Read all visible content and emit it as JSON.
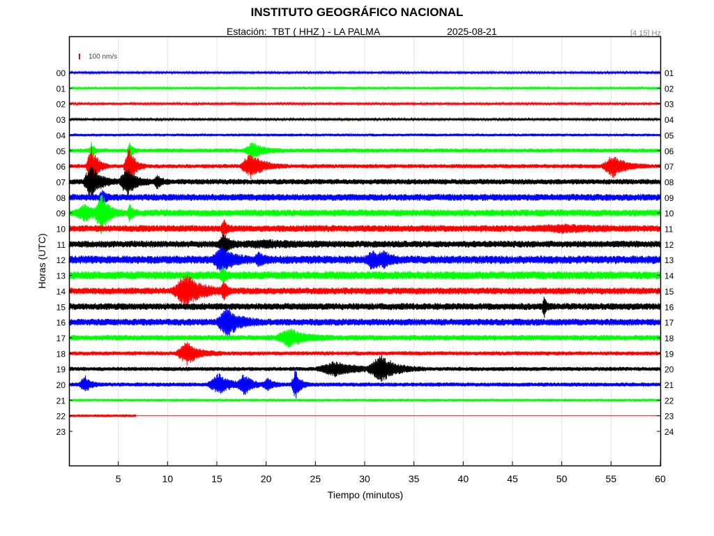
{
  "header": {
    "title": "INSTITUTO GEOGRÁFICO NACIONAL",
    "station": "Estación:  TBT ( HHZ ) - LA PALMA",
    "date": "2025-08-21",
    "band": "[4 15] Hz",
    "scale": "100 nm/s"
  },
  "chart_data": {
    "type": "line",
    "title": "INSTITUTO GEOGRÁFICO NACIONAL",
    "xlabel": "Tiempo (minutos)",
    "ylabel": "Horas (UTC)",
    "xlim": [
      0,
      60
    ],
    "x_ticks": [
      5,
      10,
      15,
      20,
      25,
      30,
      35,
      40,
      45,
      50,
      55,
      60
    ],
    "left_tick_labels": [
      "00",
      "01",
      "02",
      "03",
      "04",
      "05",
      "06",
      "07",
      "08",
      "09",
      "10",
      "11",
      "12",
      "13",
      "14",
      "15",
      "16",
      "17",
      "18",
      "19",
      "20",
      "21",
      "22",
      "23"
    ],
    "right_tick_labels": [
      "01",
      "02",
      "03",
      "04",
      "05",
      "06",
      "07",
      "08",
      "09",
      "10",
      "11",
      "12",
      "13",
      "14",
      "15",
      "16",
      "17",
      "18",
      "19",
      "20",
      "21",
      "22",
      "23",
      "24"
    ],
    "grid": true,
    "colors": [
      "#0000ff",
      "#00ff00",
      "#ff0000",
      "#000000"
    ],
    "series": [
      {
        "hour": "00",
        "color": "#0000ff",
        "noise": 1.5,
        "events": []
      },
      {
        "hour": "01",
        "color": "#00ff00",
        "noise": 1.5,
        "events": []
      },
      {
        "hour": "02",
        "color": "#ff0000",
        "noise": 1.5,
        "events": []
      },
      {
        "hour": "03",
        "color": "#000000",
        "noise": 1.5,
        "events": []
      },
      {
        "hour": "04",
        "color": "#0000ff",
        "noise": 2.0,
        "events": []
      },
      {
        "hour": "05",
        "color": "#00ff00",
        "noise": 3.0,
        "events": [
          [
            2.3,
            0.3,
            10
          ],
          [
            6.2,
            0.3,
            12
          ],
          [
            18.7,
            1.0,
            12
          ]
        ]
      },
      {
        "hour": "06",
        "color": "#ff0000",
        "noise": 3.0,
        "events": [
          [
            2.3,
            0.6,
            30
          ],
          [
            6.1,
            0.6,
            28
          ],
          [
            18.5,
            1.2,
            18
          ],
          [
            55.2,
            1.2,
            16
          ]
        ]
      },
      {
        "hour": "07",
        "color": "#000000",
        "noise": 4.0,
        "events": [
          [
            2.3,
            0.9,
            25
          ],
          [
            5.9,
            0.9,
            20
          ],
          [
            9.0,
            0.4,
            10
          ]
        ]
      },
      {
        "hour": "08",
        "color": "#0000ff",
        "noise": 5.0,
        "events": [
          [
            3.4,
            0.4,
            8
          ]
        ]
      },
      {
        "hour": "09",
        "color": "#00ff00",
        "noise": 5.0,
        "events": [
          [
            1.6,
            1.0,
            10
          ],
          [
            3.3,
            0.7,
            28
          ],
          [
            6.2,
            0.3,
            10
          ]
        ]
      },
      {
        "hour": "10",
        "color": "#ff0000",
        "noise": 5.0,
        "events": [
          [
            15.7,
            0.3,
            14
          ],
          [
            50.0,
            3.0,
            3
          ]
        ]
      },
      {
        "hour": "11",
        "color": "#000000",
        "noise": 5.0,
        "events": [
          [
            15.7,
            0.6,
            14
          ],
          [
            20.0,
            3.0,
            3
          ]
        ]
      },
      {
        "hour": "12",
        "color": "#0000ff",
        "noise": 6.0,
        "events": [
          [
            15.5,
            1.0,
            18
          ],
          [
            19.3,
            0.5,
            8
          ],
          [
            30.8,
            0.8,
            12
          ],
          [
            32.0,
            0.6,
            8
          ]
        ]
      },
      {
        "hour": "13",
        "color": "#00ff00",
        "noise": 6.0,
        "events": [
          [
            15.6,
            0.3,
            10
          ]
        ]
      },
      {
        "hour": "14",
        "color": "#ff0000",
        "noise": 5.0,
        "events": [
          [
            11.9,
            1.5,
            22
          ],
          [
            15.7,
            0.3,
            12
          ]
        ]
      },
      {
        "hour": "15",
        "color": "#000000",
        "noise": 5.0,
        "events": [
          [
            48.2,
            0.2,
            16
          ]
        ]
      },
      {
        "hour": "16",
        "color": "#0000ff",
        "noise": 5.0,
        "events": [
          [
            16.1,
            1.2,
            20
          ]
        ]
      },
      {
        "hour": "17",
        "color": "#00ff00",
        "noise": 4.0,
        "events": [
          [
            22.4,
            1.5,
            12
          ]
        ]
      },
      {
        "hour": "18",
        "color": "#ff0000",
        "noise": 3.0,
        "events": [
          [
            12.0,
            1.2,
            16
          ]
        ]
      },
      {
        "hour": "19",
        "color": "#000000",
        "noise": 3.0,
        "events": [
          [
            27.0,
            2.0,
            10
          ],
          [
            31.7,
            1.5,
            18
          ]
        ]
      },
      {
        "hour": "20",
        "color": "#0000ff",
        "noise": 3.0,
        "events": [
          [
            1.6,
            0.6,
            12
          ],
          [
            15.2,
            1.2,
            14
          ],
          [
            17.8,
            0.8,
            14
          ],
          [
            20.2,
            0.6,
            8
          ],
          [
            23.0,
            0.5,
            22
          ]
        ]
      },
      {
        "hour": "21",
        "color": "#00ff00",
        "noise": 2.0,
        "events": []
      },
      {
        "hour": "22",
        "color": "#ff0000",
        "noise": 2.0,
        "end_minute": 6.8,
        "events": []
      },
      {
        "hour": "23",
        "color": "#ff0000",
        "noise": 0,
        "events": []
      }
    ]
  }
}
